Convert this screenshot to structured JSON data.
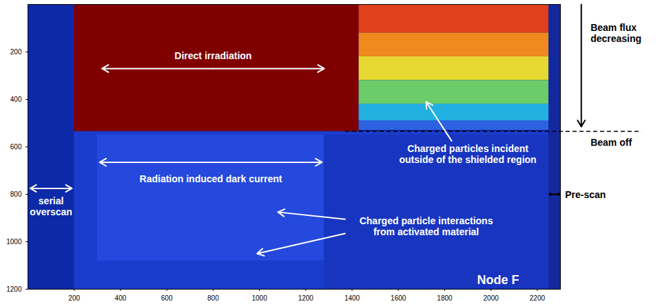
{
  "chart_data": {
    "type": "heatmap",
    "panel_label": "Node F",
    "xlim": [
      0,
      2300
    ],
    "xticks": [
      200,
      400,
      600,
      800,
      1000,
      1200,
      1400,
      1600,
      1800,
      2000,
      2200
    ],
    "ylim": [
      0,
      1200
    ],
    "yticks": [
      200,
      400,
      600,
      800,
      1000,
      1200
    ],
    "tick_labels": true,
    "cells": [
      {
        "x": [
          0,
          2300
        ],
        "y": [
          0,
          1200
        ],
        "color": "#0a1e96"
      },
      {
        "x": [
          0,
          200
        ],
        "y": [
          0,
          1200
        ],
        "color": "#0c2aa8"
      },
      {
        "x": [
          200,
          2250
        ],
        "y": [
          535,
          1200
        ],
        "color": "#1a3ccc"
      },
      {
        "x": [
          300,
          1280
        ],
        "y": [
          550,
          1080
        ],
        "color": "#2449dc"
      },
      {
        "x": [
          1280,
          2250
        ],
        "y": [
          550,
          1200
        ],
        "color": "#1835c0"
      },
      {
        "x": [
          200,
          1430
        ],
        "y": [
          0,
          535
        ],
        "color": "#800000"
      },
      {
        "x": [
          1430,
          2250
        ],
        "y": [
          0,
          120
        ],
        "color": "#e0401a"
      },
      {
        "x": [
          1430,
          2250
        ],
        "y": [
          120,
          220
        ],
        "color": "#f08a1e"
      },
      {
        "x": [
          1430,
          2250
        ],
        "y": [
          220,
          320
        ],
        "color": "#e6d830"
      },
      {
        "x": [
          1430,
          2250
        ],
        "y": [
          320,
          420
        ],
        "color": "#6ccc6a"
      },
      {
        "x": [
          1430,
          2250
        ],
        "y": [
          420,
          490
        ],
        "color": "#22b0e0"
      },
      {
        "x": [
          1430,
          2250
        ],
        "y": [
          490,
          530
        ],
        "color": "#2f62e0"
      },
      {
        "x": [
          2250,
          2300
        ],
        "y": [
          0,
          1200
        ],
        "color": "#14289e"
      }
    ],
    "annotations": [
      {
        "text": [
          "Direct irradiation"
        ],
        "x": 800,
        "y": 215,
        "color": "#ffffff",
        "arrows": [
          [
            800,
            270,
            320,
            270
          ],
          [
            800,
            270,
            1280,
            270
          ]
        ]
      },
      {
        "text": [
          "Radiation induced dark current"
        ],
        "x": 790,
        "y": 735,
        "color": "#ffffff",
        "arrows": [
          [
            790,
            665,
            310,
            665
          ],
          [
            790,
            665,
            1270,
            665
          ]
        ]
      },
      {
        "text": [
          "Charged particles incident",
          "outside of the shielded region"
        ],
        "x": 1900,
        "y": 630,
        "color": "#ffffff",
        "arrows": [
          [
            1830,
            575,
            1720,
            410
          ]
        ]
      },
      {
        "text": [
          "Charged particle interactions",
          "from activated material"
        ],
        "x": 1720,
        "y": 935,
        "color": "#ffffff",
        "arrows": [
          [
            1370,
            905,
            1080,
            875
          ],
          [
            1370,
            965,
            990,
            1050
          ]
        ]
      },
      {
        "text": [
          "serial",
          "overscan"
        ],
        "x": 100,
        "y": 850,
        "color": "#ffffff",
        "arrows": [
          [
            100,
            775,
            10,
            775
          ],
          [
            100,
            775,
            190,
            775
          ]
        ]
      },
      {
        "text": [
          "Pre-scan"
        ],
        "x": 2320,
        "y": 800,
        "color": "#000000",
        "arrows": [
          [
            2275,
            800,
            2252,
            800
          ],
          [
            2275,
            800,
            2298,
            800
          ]
        ]
      },
      {
        "text": [
          "Beam flux",
          "decreasing"
        ],
        "x": 2430,
        "y": 120,
        "color": "#000000",
        "arrows": [
          [
            2390,
            0,
            2390,
            515
          ]
        ]
      },
      {
        "text": [
          "Beam off"
        ],
        "x": 2430,
        "y": 580,
        "color": "#000000",
        "arrows": []
      }
    ],
    "lines": [
      {
        "x": [
          1370,
          2650
        ],
        "y": 535,
        "color": "#000000",
        "line_style": "dashed"
      }
    ]
  }
}
